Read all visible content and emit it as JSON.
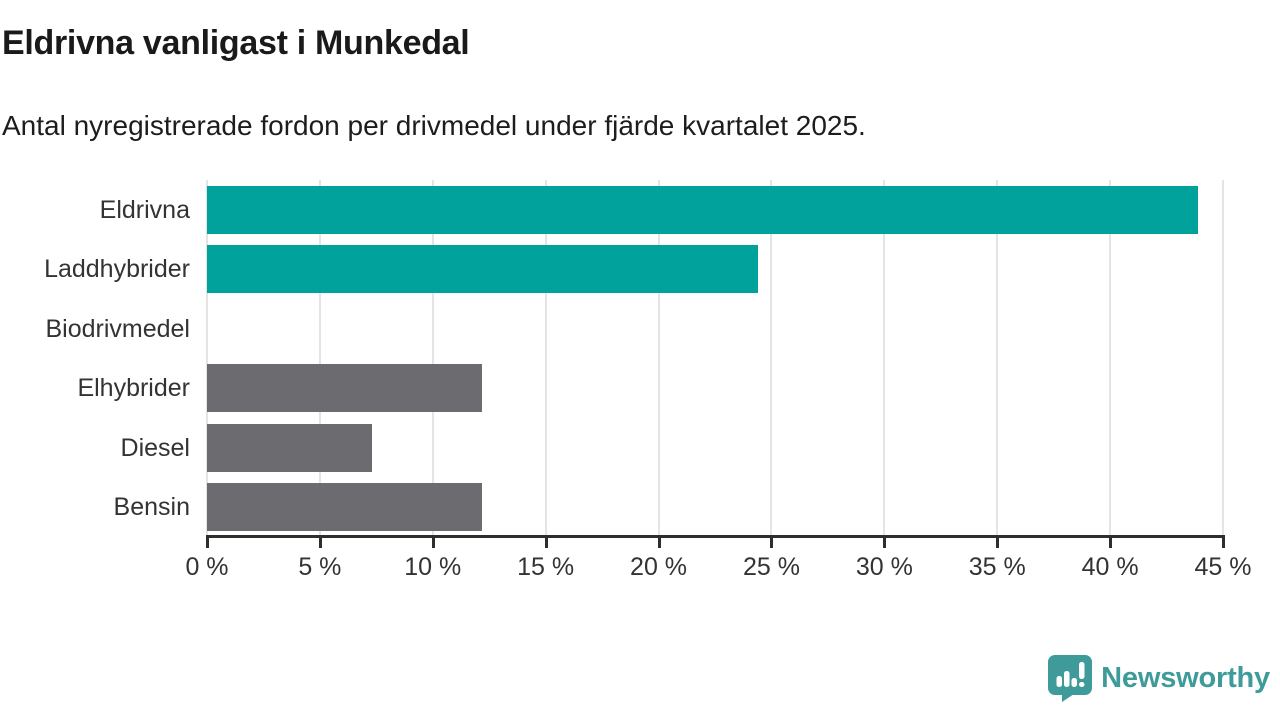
{
  "header": {
    "title": "Eldrivna vanligast i Munkedal",
    "subtitle": "Antal nyregistrerade fordon per drivmedel under fjärde kvartalet 2025."
  },
  "chart_data": {
    "type": "bar",
    "orientation": "horizontal",
    "categories": [
      "Eldrivna",
      "Laddhybrider",
      "Biodrivmedel",
      "Elhybrider",
      "Diesel",
      "Bensin"
    ],
    "values": [
      43.9,
      24.4,
      0,
      12.2,
      7.3,
      12.2
    ],
    "unit": "%",
    "xlabel": "",
    "ylabel": "",
    "xlim": [
      0,
      45
    ],
    "xticks": [
      0,
      5,
      10,
      15,
      20,
      25,
      30,
      35,
      40,
      45
    ],
    "tick_suffix": " %",
    "grid": true,
    "legend": "none",
    "bar_colors": [
      "#00a29b",
      "#00a29b",
      "#6b6b70",
      "#6b6b70",
      "#6b6b70",
      "#6b6b70"
    ]
  },
  "footer": {
    "brand": "Newsworthy"
  },
  "colors": {
    "accent_teal": "#00a29b",
    "neutral_gray": "#6b6b70",
    "brand_teal": "#3e9b9a",
    "text_dark": "#1a1a1a",
    "axis": "#2e2e2e",
    "gridline": "#e4e4e4"
  }
}
